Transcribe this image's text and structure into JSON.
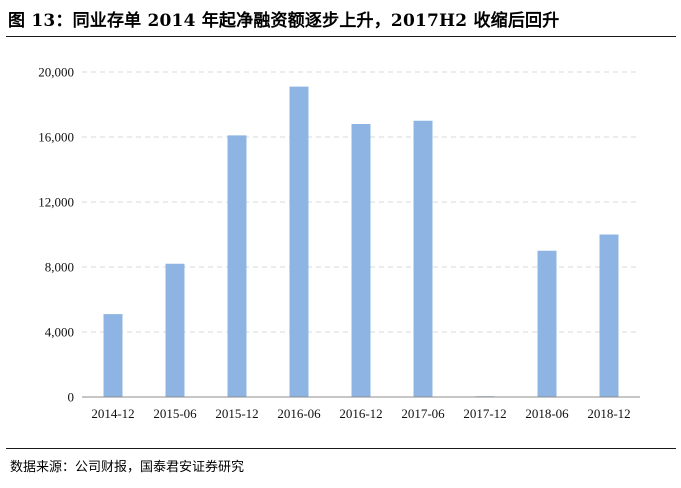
{
  "title": "图 13：同业存单 2014 年起净融资额逐步上升，2017H2 收缩后回升",
  "source": "数据来源：公司财报，国泰君安证券研究",
  "chart_data": {
    "type": "bar",
    "categories": [
      "2014-12",
      "2015-06",
      "2015-12",
      "2016-06",
      "2016-12",
      "2017-06",
      "2017-12",
      "2018-06",
      "2018-12"
    ],
    "values": [
      5100,
      8200,
      16100,
      19100,
      16800,
      17000,
      50,
      9000,
      10000
    ],
    "yticks": [
      "0",
      "4,000",
      "8,000",
      "12,000",
      "16,000",
      "20,000"
    ],
    "ylim": [
      0,
      20000
    ],
    "grid": true,
    "legend": "none",
    "bar_color": "#8db4e2",
    "grid_color": "#d9d9d9"
  }
}
